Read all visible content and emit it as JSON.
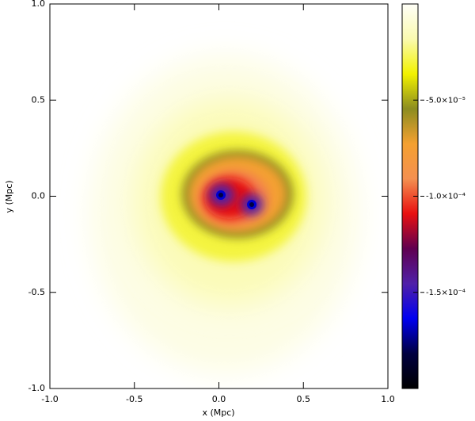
{
  "chart_data": {
    "type": "image",
    "xlabel": "x (Mpc)",
    "ylabel": "y (Mpc)",
    "xlim": [
      -1,
      1
    ],
    "ylim": [
      -1,
      1
    ],
    "xticks": [
      {
        "value": -1,
        "label": "-1.0"
      },
      {
        "value": -0.5,
        "label": "-0.5"
      },
      {
        "value": 0,
        "label": "0.0"
      },
      0.5,
      {
        "value": 1,
        "label": "1.0"
      }
    ],
    "yticks": [
      {
        "value": -1,
        "label": "-1.0"
      },
      {
        "value": -0.5,
        "label": "-0.5"
      },
      {
        "value": 0,
        "label": "0.0"
      },
      0.5,
      {
        "value": 1,
        "label": "1.0"
      }
    ],
    "colorbar": {
      "lim": [
        -0.0002,
        0
      ],
      "ticks": [
        {
          "value": -5e-05,
          "label": "-5.0×10⁻⁵"
        },
        {
          "value": -0.0001,
          "label": "-1.0×10⁻⁴"
        },
        {
          "value": -0.00015,
          "label": "-1.5×10⁻⁴"
        }
      ],
      "colormap": [
        "#fffff8",
        "#fafab0",
        "#f2f200",
        "#8c8c20",
        "#f4a030",
        "#f49050",
        "#e81010",
        "#600050",
        "#5020a8",
        "#0000f0",
        "#000040",
        "#000000"
      ]
    }
  }
}
